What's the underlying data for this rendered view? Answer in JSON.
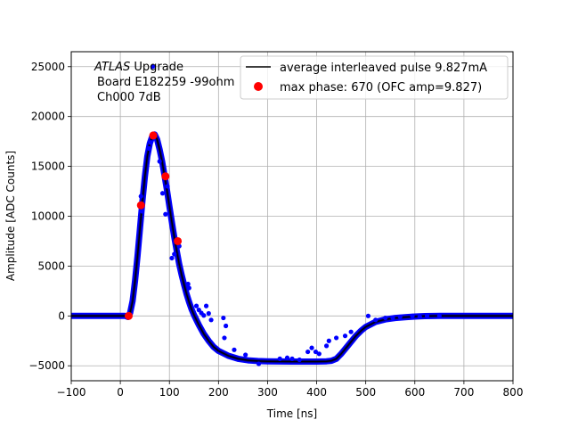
{
  "chart_data": {
    "type": "scatter",
    "xlabel": "Time [ns]",
    "ylabel": "Amplitude [ADC Counts]",
    "xlim": [
      -100,
      800
    ],
    "ylim": [
      -6500,
      26500
    ],
    "grid": true,
    "legend_position": "upper-right",
    "x_ticks": [
      -100,
      0,
      100,
      200,
      300,
      400,
      500,
      600,
      700,
      800
    ],
    "x_tick_labels": [
      "−100",
      "0",
      "100",
      "200",
      "300",
      "400",
      "500",
      "600",
      "700",
      "800"
    ],
    "y_ticks": [
      -5000,
      0,
      5000,
      10000,
      15000,
      20000,
      25000
    ],
    "y_tick_labels": [
      "−5000",
      "0",
      "5000",
      "10000",
      "15000",
      "20000",
      "25000"
    ],
    "annotation": {
      "italic_part": "ATLAS",
      "rest": " Upgrade",
      "line2": "Board E182259 -99ohm",
      "line3": "Ch000 7dB"
    },
    "series": [
      {
        "name": "average interleaved pulse 9.827mA",
        "kind": "line",
        "color": "#000000",
        "points": [
          [
            -100,
            0
          ],
          [
            10,
            0
          ],
          [
            15,
            -100
          ],
          [
            20,
            300
          ],
          [
            25,
            1500
          ],
          [
            30,
            3500
          ],
          [
            35,
            6000
          ],
          [
            40,
            8800
          ],
          [
            45,
            11500
          ],
          [
            50,
            14000
          ],
          [
            55,
            16000
          ],
          [
            60,
            17300
          ],
          [
            65,
            18000
          ],
          [
            70,
            18200
          ],
          [
            75,
            17700
          ],
          [
            80,
            16700
          ],
          [
            85,
            15500
          ],
          [
            90,
            14100
          ],
          [
            95,
            12600
          ],
          [
            100,
            11000
          ],
          [
            105,
            9400
          ],
          [
            110,
            7900
          ],
          [
            115,
            6500
          ],
          [
            120,
            5200
          ],
          [
            125,
            4100
          ],
          [
            130,
            3100
          ],
          [
            135,
            2200
          ],
          [
            140,
            1400
          ],
          [
            145,
            700
          ],
          [
            150,
            100
          ],
          [
            160,
            -900
          ],
          [
            170,
            -1800
          ],
          [
            180,
            -2500
          ],
          [
            190,
            -3100
          ],
          [
            200,
            -3500
          ],
          [
            220,
            -4000
          ],
          [
            240,
            -4300
          ],
          [
            260,
            -4450
          ],
          [
            280,
            -4520
          ],
          [
            300,
            -4550
          ],
          [
            350,
            -4580
          ],
          [
            400,
            -4580
          ],
          [
            420,
            -4550
          ],
          [
            430,
            -4500
          ],
          [
            440,
            -4300
          ],
          [
            450,
            -3800
          ],
          [
            460,
            -3200
          ],
          [
            470,
            -2600
          ],
          [
            480,
            -2000
          ],
          [
            490,
            -1500
          ],
          [
            500,
            -1100
          ],
          [
            520,
            -600
          ],
          [
            540,
            -350
          ],
          [
            560,
            -200
          ],
          [
            580,
            -120
          ],
          [
            600,
            -60
          ],
          [
            620,
            -20
          ],
          [
            650,
            0
          ],
          [
            800,
            0
          ]
        ]
      },
      {
        "name": "",
        "kind": "scatter",
        "color": "#0000ff",
        "points": [
          [
            42,
            12000
          ],
          [
            44,
            10500
          ],
          [
            58,
            16800
          ],
          [
            62,
            17400
          ],
          [
            66,
            25000
          ],
          [
            80,
            15500
          ],
          [
            86,
            12300
          ],
          [
            92,
            10200
          ],
          [
            96,
            13000
          ],
          [
            105,
            5800
          ],
          [
            110,
            6200
          ],
          [
            120,
            7000
          ],
          [
            138,
            3200
          ],
          [
            140,
            2800
          ],
          [
            155,
            1000
          ],
          [
            160,
            600
          ],
          [
            165,
            300
          ],
          [
            170,
            50
          ],
          [
            175,
            1000
          ],
          [
            180,
            250
          ],
          [
            185,
            -400
          ],
          [
            210,
            -200
          ],
          [
            215,
            -1000
          ],
          [
            212,
            -2200
          ],
          [
            232,
            -3400
          ],
          [
            255,
            -3900
          ],
          [
            282,
            -4800
          ],
          [
            325,
            -4300
          ],
          [
            340,
            -4200
          ],
          [
            350,
            -4300
          ],
          [
            365,
            -4400
          ],
          [
            382,
            -3600
          ],
          [
            390,
            -3200
          ],
          [
            398,
            -3600
          ],
          [
            405,
            -3800
          ],
          [
            420,
            -3000
          ],
          [
            425,
            -2500
          ],
          [
            440,
            -2200
          ],
          [
            458,
            -2000
          ],
          [
            470,
            -1600
          ],
          [
            505,
            0
          ],
          [
            520,
            -400
          ],
          [
            540,
            -200
          ],
          [
            555,
            -200
          ],
          [
            570,
            -100
          ],
          [
            595,
            0
          ],
          [
            610,
            -80
          ],
          [
            625,
            0
          ],
          [
            650,
            0
          ]
        ]
      },
      {
        "name": "max phase: 670 (OFC amp=9.827)",
        "kind": "scatter",
        "color": "#ff0000",
        "points": [
          [
            17,
            0
          ],
          [
            42,
            11100
          ],
          [
            67,
            18100
          ],
          [
            92,
            14000
          ],
          [
            117,
            7500
          ]
        ]
      }
    ]
  }
}
